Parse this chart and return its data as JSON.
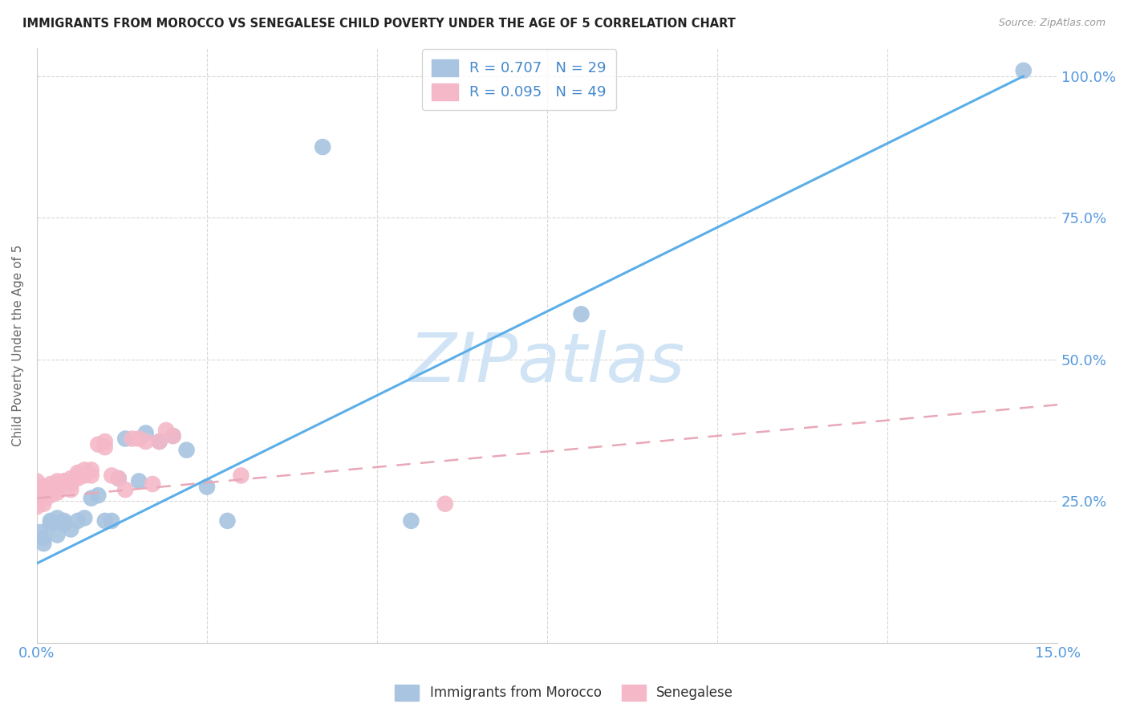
{
  "title": "IMMIGRANTS FROM MOROCCO VS SENEGALESE CHILD POVERTY UNDER THE AGE OF 5 CORRELATION CHART",
  "source": "Source: ZipAtlas.com",
  "ylabel": "Child Poverty Under the Age of 5",
  "legend_labels": [
    "Immigrants from Morocco",
    "Senegalese"
  ],
  "r_morocco": 0.707,
  "n_morocco": 29,
  "r_senegalese": 0.095,
  "n_senegalese": 49,
  "color_morocco": "#a8c4e0",
  "color_senegalese": "#f4b8c8",
  "line_color_morocco": "#5baee8",
  "line_color_senegalese": "#e8a8b8",
  "watermark_color": "#d0e4f5",
  "xlim": [
    0.0,
    0.15
  ],
  "ylim": [
    0.0,
    1.05
  ],
  "morocco_line_x": [
    0.0,
    0.145
  ],
  "morocco_line_y": [
    0.14,
    1.0
  ],
  "senegalese_line_x": [
    0.0,
    0.15
  ],
  "senegalese_line_y": [
    0.255,
    0.42
  ],
  "morocco_x": [
    0.0005,
    0.001,
    0.001,
    0.002,
    0.002,
    0.003,
    0.003,
    0.004,
    0.004,
    0.005,
    0.006,
    0.007,
    0.008,
    0.009,
    0.01,
    0.011,
    0.012,
    0.013,
    0.015,
    0.016,
    0.018,
    0.02,
    0.022,
    0.025,
    0.028,
    0.042,
    0.055,
    0.08,
    0.145
  ],
  "morocco_y": [
    0.195,
    0.175,
    0.185,
    0.215,
    0.21,
    0.22,
    0.19,
    0.215,
    0.21,
    0.2,
    0.215,
    0.22,
    0.255,
    0.26,
    0.215,
    0.215,
    0.29,
    0.36,
    0.285,
    0.37,
    0.355,
    0.365,
    0.34,
    0.275,
    0.215,
    0.875,
    0.215,
    0.58,
    1.01
  ],
  "senegalese_x": [
    0.0,
    0.0,
    0.0,
    0.0,
    0.0,
    0.0,
    0.0,
    0.0,
    0.001,
    0.001,
    0.001,
    0.001,
    0.001,
    0.002,
    0.002,
    0.002,
    0.002,
    0.002,
    0.003,
    0.003,
    0.003,
    0.003,
    0.004,
    0.004,
    0.005,
    0.005,
    0.005,
    0.006,
    0.006,
    0.006,
    0.007,
    0.007,
    0.008,
    0.008,
    0.009,
    0.01,
    0.01,
    0.011,
    0.012,
    0.013,
    0.014,
    0.015,
    0.016,
    0.017,
    0.018,
    0.019,
    0.02,
    0.03,
    0.06
  ],
  "senegalese_y": [
    0.285,
    0.275,
    0.265,
    0.26,
    0.255,
    0.25,
    0.245,
    0.24,
    0.275,
    0.27,
    0.265,
    0.255,
    0.245,
    0.28,
    0.27,
    0.27,
    0.265,
    0.26,
    0.285,
    0.28,
    0.275,
    0.265,
    0.285,
    0.285,
    0.29,
    0.28,
    0.27,
    0.3,
    0.295,
    0.29,
    0.305,
    0.295,
    0.305,
    0.295,
    0.35,
    0.355,
    0.345,
    0.295,
    0.29,
    0.27,
    0.36,
    0.36,
    0.355,
    0.28,
    0.355,
    0.375,
    0.365,
    0.295,
    0.245
  ]
}
